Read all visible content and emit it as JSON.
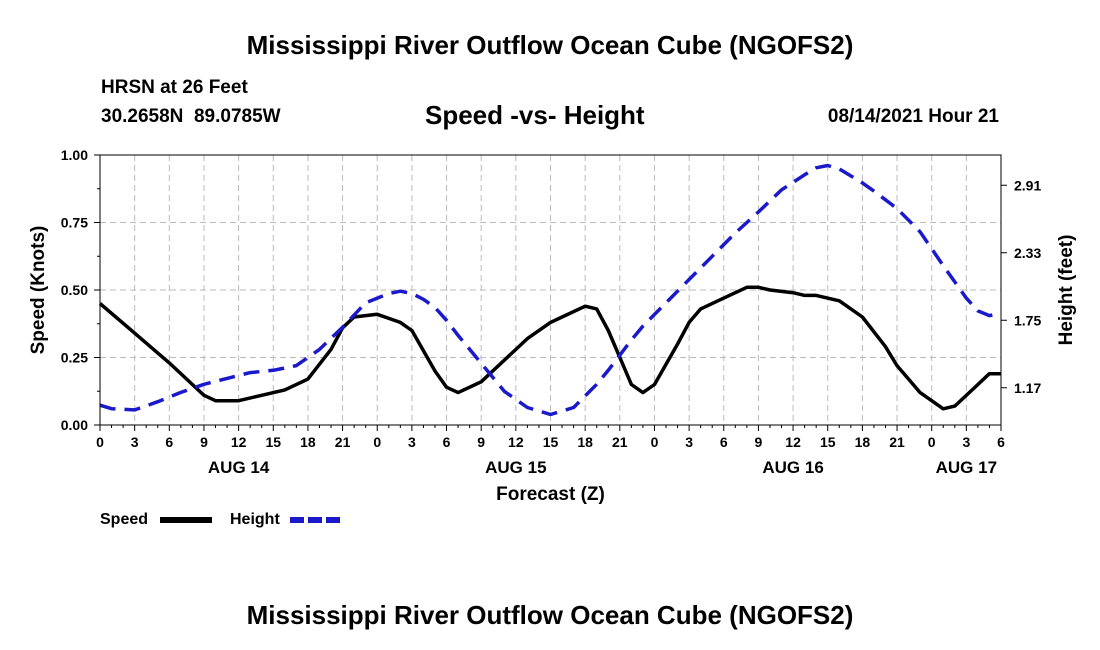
{
  "header": {
    "title": "Mississippi River Outflow Ocean Cube (NGOFS2)",
    "station": "HRSN at 26 Feet",
    "coords": "30.2658N  89.0785W",
    "subtitle": "Speed -vs- Height",
    "datetime": "08/14/2021 Hour 21"
  },
  "footer": {
    "title": "Mississippi River Outflow Ocean Cube (NGOFS2)"
  },
  "legend": {
    "speed": "Speed",
    "height": "Height"
  },
  "colors": {
    "speed": "#000000",
    "height": "#1a1acc",
    "grid": "#bbbbbb"
  },
  "chart_data": {
    "type": "line",
    "title": "Speed -vs- Height",
    "xlabel": "Forecast (Z)",
    "ylabel": "Speed (Knots)",
    "y2label": "Height (feet)",
    "xlim": [
      0,
      78
    ],
    "ylim": [
      0,
      1.0
    ],
    "y2lim": [
      0.85,
      3.17
    ],
    "grid": true,
    "legend_position": "bottom-left",
    "x_ticks": [
      0,
      3,
      6,
      9,
      12,
      15,
      18,
      21,
      24,
      27,
      30,
      33,
      36,
      39,
      42,
      45,
      48,
      51,
      54,
      57,
      60,
      63,
      66,
      69,
      72,
      75,
      78
    ],
    "x_tick_labels": [
      "0",
      "3",
      "6",
      "9",
      "12",
      "15",
      "18",
      "21",
      "0",
      "3",
      "6",
      "9",
      "12",
      "15",
      "18",
      "21",
      "0",
      "3",
      "6",
      "9",
      "12",
      "15",
      "18",
      "21",
      "0",
      "3",
      "6"
    ],
    "date_labels": [
      {
        "x": 12,
        "label": "AUG 14"
      },
      {
        "x": 36,
        "label": "AUG 15"
      },
      {
        "x": 60,
        "label": "AUG 16"
      },
      {
        "x": 75,
        "label": "AUG 17"
      }
    ],
    "y_ticks": [
      0,
      0.25,
      0.5,
      0.75,
      1.0
    ],
    "y_tick_labels": [
      "0.00",
      "0.25",
      "0.50",
      "0.75",
      "1.00"
    ],
    "y2_ticks": [
      1.17,
      1.75,
      2.33,
      2.91
    ],
    "y2_tick_labels": [
      "1.17",
      "1.75",
      "2.33",
      "2.91"
    ],
    "series": [
      {
        "name": "Speed",
        "axis": "left",
        "style": "solid",
        "x": [
          0,
          3,
          6,
          8,
          9,
          10,
          12,
          14,
          16,
          18,
          20,
          21,
          22,
          24,
          26,
          27,
          29,
          30,
          31,
          33,
          35,
          37,
          39,
          40,
          42,
          43,
          44,
          46,
          47,
          48,
          50,
          51,
          52,
          54,
          56,
          57,
          58,
          60,
          61,
          62,
          64,
          66,
          68,
          69,
          70,
          71,
          72,
          73,
          74,
          76,
          77,
          78
        ],
        "values": [
          0.45,
          0.34,
          0.23,
          0.15,
          0.11,
          0.09,
          0.09,
          0.11,
          0.13,
          0.17,
          0.28,
          0.36,
          0.4,
          0.41,
          0.38,
          0.35,
          0.2,
          0.14,
          0.12,
          0.16,
          0.24,
          0.32,
          0.38,
          0.4,
          0.44,
          0.43,
          0.35,
          0.15,
          0.12,
          0.15,
          0.3,
          0.38,
          0.43,
          0.47,
          0.51,
          0.51,
          0.5,
          0.49,
          0.48,
          0.48,
          0.46,
          0.4,
          0.29,
          0.22,
          0.17,
          0.12,
          0.09,
          0.06,
          0.07,
          0.15,
          0.19,
          0.19
        ]
      },
      {
        "name": "Height",
        "axis": "right",
        "style": "dashed",
        "x": [
          0,
          1,
          3,
          5,
          7,
          9,
          11,
          13,
          15,
          17,
          19,
          21,
          23,
          25,
          26,
          27,
          28,
          29,
          30,
          31,
          33,
          35,
          37,
          39,
          41,
          43,
          44,
          45,
          46,
          47,
          49,
          51,
          53,
          55,
          57,
          59,
          61,
          62,
          63,
          64,
          65,
          66,
          67,
          69,
          71,
          73,
          75,
          76,
          77,
          78
        ],
        "values": [
          1.02,
          0.99,
          0.98,
          1.05,
          1.13,
          1.2,
          1.25,
          1.3,
          1.32,
          1.36,
          1.5,
          1.69,
          1.9,
          1.98,
          2.0,
          1.98,
          1.93,
          1.86,
          1.75,
          1.62,
          1.38,
          1.14,
          1.0,
          0.94,
          1.0,
          1.2,
          1.32,
          1.45,
          1.58,
          1.7,
          1.9,
          2.1,
          2.3,
          2.5,
          2.68,
          2.87,
          3.0,
          3.06,
          3.08,
          3.05,
          2.99,
          2.93,
          2.86,
          2.71,
          2.51,
          2.22,
          1.94,
          1.83,
          1.79,
          1.81
        ]
      }
    ]
  }
}
